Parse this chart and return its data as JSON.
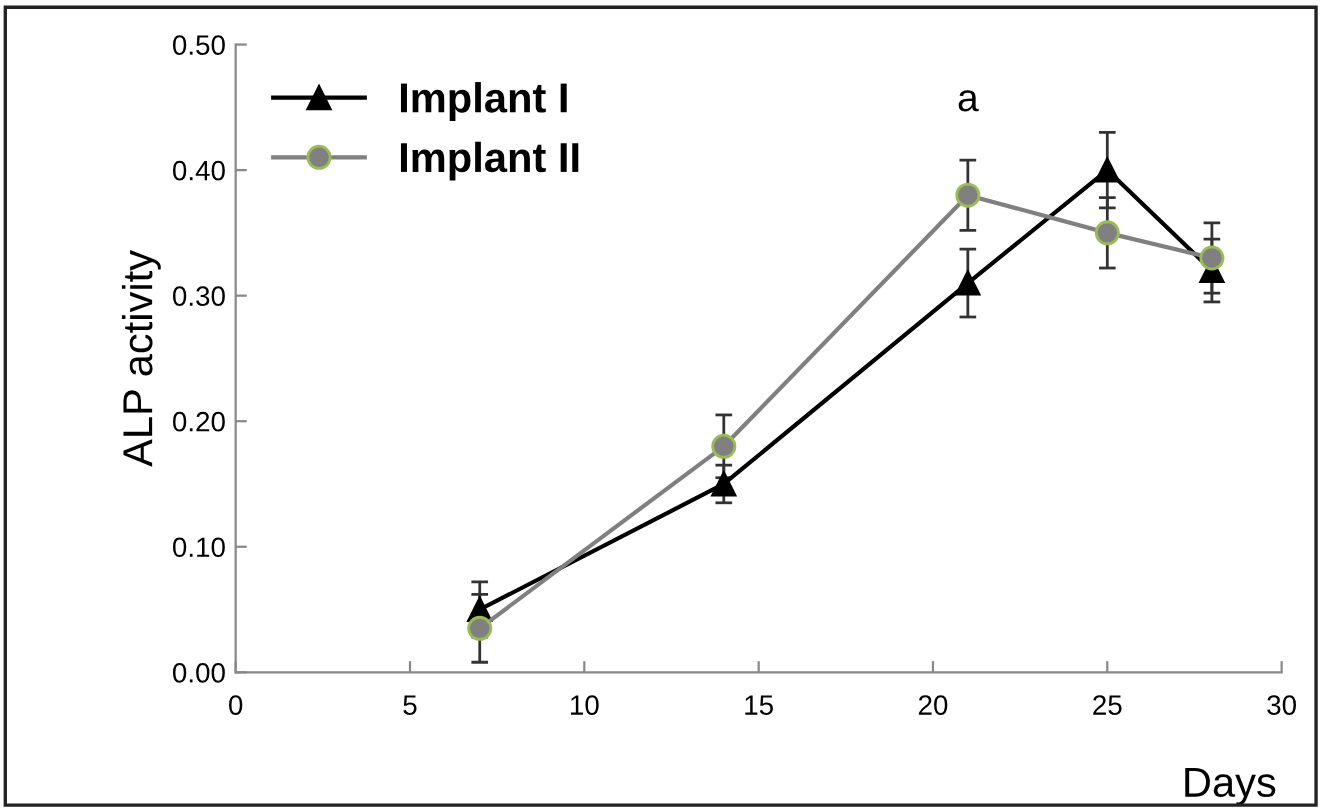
{
  "chart_data": {
    "type": "line",
    "xlabel": "Days",
    "ylabel": "ALP activity",
    "x": [
      7,
      14,
      21,
      25,
      28
    ],
    "series": [
      {
        "name": "Implant I",
        "color": "#000000",
        "marker": "triangle",
        "values": [
          0.05,
          0.15,
          0.31,
          0.4,
          0.32
        ],
        "errors": [
          0.022,
          0.015,
          0.027,
          0.03,
          0.025
        ]
      },
      {
        "name": "Implant II",
        "color": "#808080",
        "marker": "circle",
        "values": [
          0.035,
          0.18,
          0.38,
          0.35,
          0.33
        ],
        "errors": [
          0.027,
          0.025,
          0.028,
          0.028,
          0.028
        ]
      }
    ],
    "annotations": [
      "a"
    ],
    "xlim": [
      0,
      30
    ],
    "xticks": [
      0,
      5,
      10,
      15,
      20,
      25,
      30
    ],
    "ylim": [
      0,
      0.5
    ],
    "yticks": [
      {
        "value": 0,
        "label": "0.00"
      },
      {
        "value": 0.1,
        "label": "0.10"
      },
      {
        "value": 0.2,
        "label": "0.20"
      },
      {
        "value": 0.3,
        "label": "0.30"
      },
      {
        "value": 0.4,
        "label": "0.40"
      },
      {
        "value": 0.5,
        "label": "0.50"
      }
    ],
    "grid": false,
    "legend": "top left"
  }
}
